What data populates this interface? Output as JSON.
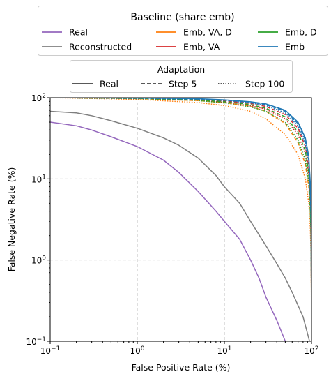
{
  "chart_data": {
    "type": "line",
    "xlabel": "False Positive Rate (%)",
    "ylabel": "False Negative Rate (%)",
    "xscale": "log",
    "yscale": "log",
    "xlim": [
      0.1,
      100
    ],
    "ylim": [
      0.1,
      100
    ],
    "grid": true,
    "x_ticks": [
      {
        "value": 0.1,
        "base": "10",
        "exp": "−1"
      },
      {
        "value": 1,
        "base": "10",
        "exp": "0"
      },
      {
        "value": 10,
        "base": "10",
        "exp": "1"
      },
      {
        "value": 100,
        "base": "10",
        "exp": "2"
      }
    ],
    "y_ticks": [
      {
        "value": 0.1,
        "base": "10",
        "exp": "−1"
      },
      {
        "value": 1,
        "base": "10",
        "exp": "0"
      },
      {
        "value": 10,
        "base": "10",
        "exp": "1"
      },
      {
        "value": 100,
        "base": "10",
        "exp": "2"
      }
    ],
    "legend_baseline": {
      "title": "Baseline (share emb)",
      "placement": "top",
      "entries": [
        {
          "label": "Real",
          "color": "#9467bd"
        },
        {
          "label": "Reconstructed",
          "color": "#7f7f7f"
        },
        {
          "label": "Emb, VA, D",
          "color": "#ff7f0e"
        },
        {
          "label": "Emb, VA",
          "color": "#d62728"
        },
        {
          "label": "Emb, D",
          "color": "#2ca02c"
        },
        {
          "label": "Emb",
          "color": "#1f77b4"
        }
      ]
    },
    "legend_adaptation": {
      "title": "Adaptation",
      "placement": "top",
      "entries": [
        {
          "label": "Real",
          "dash": "solid"
        },
        {
          "label": "Step 5",
          "dash": "dashed"
        },
        {
          "label": "Step 100",
          "dash": "dotted"
        }
      ]
    },
    "series": [
      {
        "name": "Real",
        "color": "#9467bd",
        "dash": "solid",
        "points": [
          [
            0.1,
            50
          ],
          [
            0.2,
            45
          ],
          [
            0.3,
            40
          ],
          [
            0.5,
            33
          ],
          [
            1,
            25
          ],
          [
            2,
            17
          ],
          [
            3,
            12
          ],
          [
            5,
            7
          ],
          [
            8,
            4
          ],
          [
            10,
            3
          ],
          [
            15,
            1.8
          ],
          [
            20,
            1.0
          ],
          [
            25,
            0.6
          ],
          [
            30,
            0.35
          ],
          [
            40,
            0.18
          ],
          [
            50,
            0.1
          ]
        ]
      },
      {
        "name": "Reconstructed",
        "color": "#7f7f7f",
        "dash": "solid",
        "points": [
          [
            0.1,
            68
          ],
          [
            0.2,
            65
          ],
          [
            0.3,
            60
          ],
          [
            0.5,
            52
          ],
          [
            1,
            42
          ],
          [
            2,
            32
          ],
          [
            3,
            26
          ],
          [
            5,
            18
          ],
          [
            8,
            11
          ],
          [
            10,
            8
          ],
          [
            15,
            5
          ],
          [
            20,
            3
          ],
          [
            30,
            1.5
          ],
          [
            40,
            0.9
          ],
          [
            50,
            0.6
          ],
          [
            60,
            0.4
          ],
          [
            80,
            0.2
          ],
          [
            95,
            0.1
          ]
        ]
      },
      {
        "name": "Emb, VA, D",
        "color": "#ff7f0e",
        "dash": "dashed",
        "points": [
          [
            0.1,
            100
          ],
          [
            1,
            97
          ],
          [
            5,
            92
          ],
          [
            10,
            87
          ],
          [
            20,
            78
          ],
          [
            30,
            68
          ],
          [
            50,
            48
          ],
          [
            70,
            28
          ],
          [
            85,
            15
          ],
          [
            93,
            8
          ],
          [
            97,
            4
          ],
          [
            99,
            1.5
          ],
          [
            100,
            0.1
          ]
        ]
      },
      {
        "name": "Emb, VA, D",
        "color": "#ff7f0e",
        "dash": "dotted",
        "points": [
          [
            0.1,
            100
          ],
          [
            1,
            95
          ],
          [
            5,
            87
          ],
          [
            10,
            80
          ],
          [
            20,
            68
          ],
          [
            30,
            55
          ],
          [
            50,
            35
          ],
          [
            70,
            20
          ],
          [
            85,
            10
          ],
          [
            93,
            5
          ],
          [
            97,
            2.5
          ],
          [
            99,
            1
          ],
          [
            100,
            0.1
          ]
        ]
      },
      {
        "name": "Emb, VA",
        "color": "#d62728",
        "dash": "dashed",
        "points": [
          [
            0.1,
            100
          ],
          [
            1,
            98
          ],
          [
            5,
            95
          ],
          [
            10,
            91
          ],
          [
            20,
            85
          ],
          [
            30,
            78
          ],
          [
            50,
            62
          ],
          [
            70,
            42
          ],
          [
            85,
            25
          ],
          [
            93,
            14
          ],
          [
            97,
            6
          ],
          [
            99,
            2
          ],
          [
            100,
            0.1
          ]
        ]
      },
      {
        "name": "Emb, VA",
        "color": "#d62728",
        "dash": "dotted",
        "points": [
          [
            0.1,
            100
          ],
          [
            1,
            97
          ],
          [
            5,
            93
          ],
          [
            10,
            88
          ],
          [
            20,
            80
          ],
          [
            30,
            72
          ],
          [
            50,
            55
          ],
          [
            70,
            35
          ],
          [
            85,
            20
          ],
          [
            93,
            11
          ],
          [
            97,
            5
          ],
          [
            99,
            1.8
          ],
          [
            100,
            0.1
          ]
        ]
      },
      {
        "name": "Emb, D",
        "color": "#2ca02c",
        "dash": "dashed",
        "points": [
          [
            0.1,
            100
          ],
          [
            1,
            98
          ],
          [
            5,
            94
          ],
          [
            10,
            89
          ],
          [
            20,
            82
          ],
          [
            30,
            74
          ],
          [
            50,
            58
          ],
          [
            70,
            38
          ],
          [
            85,
            22
          ],
          [
            93,
            12
          ],
          [
            97,
            5
          ],
          [
            99,
            2
          ],
          [
            100,
            0.1
          ]
        ]
      },
      {
        "name": "Emb, D",
        "color": "#2ca02c",
        "dash": "dotted",
        "points": [
          [
            0.1,
            100
          ],
          [
            1,
            97
          ],
          [
            5,
            92
          ],
          [
            10,
            86
          ],
          [
            20,
            77
          ],
          [
            30,
            68
          ],
          [
            50,
            50
          ],
          [
            70,
            30
          ],
          [
            85,
            17
          ],
          [
            93,
            9
          ],
          [
            97,
            4
          ],
          [
            99,
            1.5
          ],
          [
            100,
            0.1
          ]
        ]
      },
      {
        "name": "Emb",
        "color": "#1f77b4",
        "dash": "dashed",
        "points": [
          [
            0.1,
            100
          ],
          [
            1,
            99
          ],
          [
            5,
            96
          ],
          [
            10,
            93
          ],
          [
            20,
            88
          ],
          [
            30,
            82
          ],
          [
            50,
            68
          ],
          [
            70,
            48
          ],
          [
            85,
            30
          ],
          [
            93,
            17
          ],
          [
            97,
            8
          ],
          [
            99,
            3
          ],
          [
            100,
            0.1
          ]
        ]
      },
      {
        "name": "Emb",
        "color": "#1f77b4",
        "dash": "dotted",
        "points": [
          [
            0.1,
            100
          ],
          [
            1,
            98
          ],
          [
            5,
            95
          ],
          [
            10,
            92
          ],
          [
            20,
            86
          ],
          [
            30,
            80
          ],
          [
            50,
            65
          ],
          [
            70,
            45
          ],
          [
            85,
            27
          ],
          [
            93,
            15
          ],
          [
            97,
            7
          ],
          [
            99,
            2.5
          ],
          [
            100,
            0.1
          ]
        ]
      },
      {
        "name": "Emb",
        "color": "#1f77b4",
        "dash": "solid",
        "points": [
          [
            0.1,
            100
          ],
          [
            1,
            99
          ],
          [
            5,
            97
          ],
          [
            10,
            94
          ],
          [
            20,
            89
          ],
          [
            30,
            84
          ],
          [
            50,
            70
          ],
          [
            70,
            50
          ],
          [
            85,
            32
          ],
          [
            93,
            19
          ],
          [
            97,
            9
          ],
          [
            99,
            3.5
          ],
          [
            100,
            0.1
          ]
        ]
      }
    ]
  }
}
